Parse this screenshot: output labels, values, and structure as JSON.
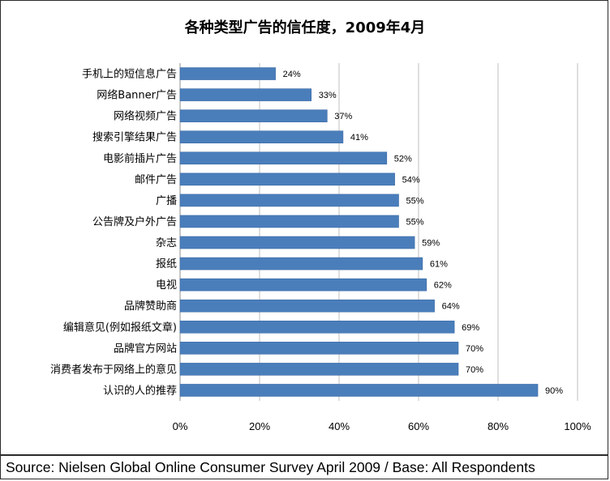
{
  "chart_data": {
    "type": "bar",
    "orientation": "horizontal",
    "title": "各种类型广告的信任度，2009年4月",
    "xlabel": "",
    "ylabel": "",
    "xlim": [
      0,
      100
    ],
    "grid": true,
    "bar_color": "#4a7ebb",
    "x_ticks": [
      "0%",
      "20%",
      "40%",
      "60%",
      "80%",
      "100%"
    ],
    "categories": [
      "手机上的短信息广告",
      "网络Banner广告",
      "网络视频广告",
      "搜索引擎结果广告",
      "电影前插片广告",
      "邮件广告",
      "广播",
      "公告牌及户外广告",
      "杂志",
      "报纸",
      "电视",
      "品牌赞助商",
      "编辑意见(例如报纸文章)",
      "品牌官方网站",
      "消费者发布于网络上的意见",
      "认识的人的推荐"
    ],
    "values": [
      24,
      33,
      37,
      41,
      52,
      54,
      55,
      55,
      59,
      61,
      62,
      64,
      69,
      70,
      70,
      90
    ],
    "value_labels": [
      "24%",
      "33%",
      "37%",
      "41%",
      "52%",
      "54%",
      "55%",
      "55%",
      "59%",
      "61%",
      "62%",
      "64%",
      "69%",
      "70%",
      "70%",
      "90%"
    ]
  },
  "footer": {
    "source": "Source: Nielsen Global Online Consumer Survey April 2009 / Base: All Respondents"
  }
}
